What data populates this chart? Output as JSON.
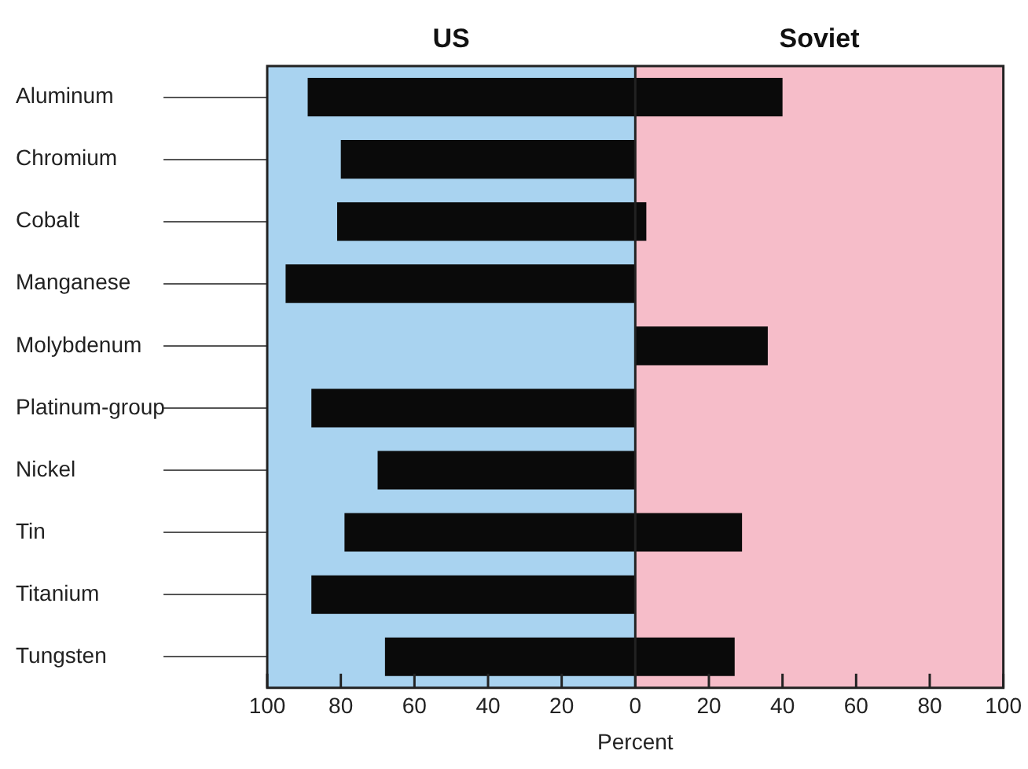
{
  "chart_data": {
    "type": "bar",
    "orientation": "horizontal",
    "stacked": true,
    "categories": [
      "Aluminum",
      "Chromium",
      "Cobalt",
      "Manganese",
      "Molybdenum",
      "Platinum-group",
      "Nickel",
      "Tin",
      "Titanium",
      "Tungsten"
    ],
    "series": [
      {
        "color": "#0a0a0a",
        "values": [
          -89,
          -80,
          -81,
          -95,
          0,
          -88,
          -70,
          -79,
          -88,
          -68
        ]
      },
      {
        "color": "#0a0a0a",
        "values": [
          40,
          0,
          3,
          0,
          36,
          0,
          0,
          29,
          0,
          27
        ]
      }
    ],
    "xlabel": "Percent",
    "xlim": [
      -100,
      100
    ],
    "xticks": [
      {
        "value": -100,
        "label": "100"
      },
      {
        "value": -80,
        "label": "80"
      },
      {
        "value": -60,
        "label": "60"
      },
      {
        "value": -40,
        "label": "40"
      },
      {
        "value": -20,
        "label": "20"
      },
      0,
      20,
      40,
      60,
      80,
      100
    ],
    "bands": [
      {
        "axis": "x",
        "from": -100,
        "to": 0,
        "label": "US",
        "color": "#a9d3f0"
      },
      {
        "axis": "x",
        "from": 0,
        "to": 100,
        "label": "Soviet",
        "color": "#f6bdc9"
      }
    ]
  }
}
